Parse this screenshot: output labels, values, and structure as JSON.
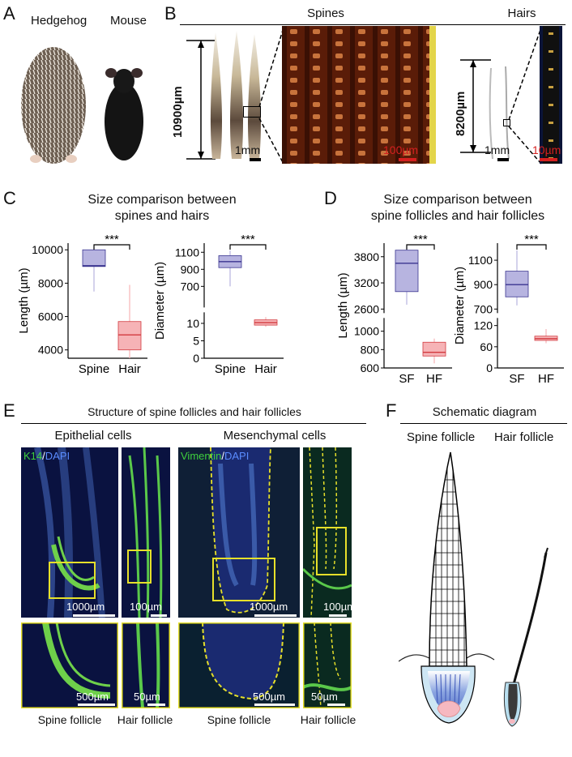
{
  "panels": {
    "A": "A",
    "B": "B",
    "C": "C",
    "D": "D",
    "E": "E",
    "F": "F"
  },
  "panel_a": {
    "hedgehog": "Hedgehog",
    "mouse": "Mouse"
  },
  "panel_b": {
    "spines_title": "Spines",
    "hairs_title": "Hairs",
    "spine_length": "10900µm",
    "spine_scale": "1mm",
    "spine_zoom_scale": "100µm",
    "hair_length": "8200µm",
    "hair_scale": "1mm",
    "hair_zoom_scale": "10µm"
  },
  "panel_c": {
    "title_l1": "Size comparison between",
    "title_l2": "spines and hairs"
  },
  "panel_d": {
    "title_l1": "Size comparison between",
    "title_l2": "spine follicles and hair follicles"
  },
  "panel_e": {
    "title": "Structure of spine follicles and hair follicles",
    "epithelial": "Epithelial cells",
    "mesenchymal": "Mesenchymal cells",
    "k14": "K14",
    "slash1": "/",
    "dapi1": "DAPI",
    "vimentin": "Vimentin",
    "slash2": "/",
    "dapi2": "DAPI",
    "s1": "1000µm",
    "s2": "100µm",
    "s3": "1000µm",
    "s4": "100µm",
    "s5": "500µm",
    "s6": "50µm",
    "s7": "500µm",
    "s8": "50µm",
    "spine_follicle_1": "Spine follicle",
    "hair_follicle_1": "Hair follicle",
    "spine_follicle_2": "Spine follicle",
    "hair_follicle_2": "Hair follicle"
  },
  "panel_f": {
    "title": "Schematic diagram",
    "spine_follicle": "Spine follicle",
    "hair_follicle": "Hair follicle"
  },
  "colors": {
    "spine_box": "#b7b4e0",
    "spine_median": "#3a3590",
    "hair_box": "#f6b3b6",
    "hair_median": "#d23a3f"
  },
  "chart_data": [
    {
      "type": "box",
      "ylabel": "Length (µm)",
      "categories": [
        "Spine",
        "Hair"
      ],
      "y_ticks": [
        "4000",
        "6000",
        "8000",
        "10000"
      ],
      "ylim": [
        3500,
        10400
      ],
      "significance": "***",
      "boxes": [
        {
          "name": "Spine",
          "min": 7500,
          "q1": 9000,
          "median": 9050,
          "q3": 10000,
          "max": 10200
        },
        {
          "name": "Hair",
          "min": 3500,
          "q1": 4000,
          "median": 4900,
          "q3": 5700,
          "max": 7900
        }
      ]
    },
    {
      "type": "box",
      "ylabel": "Diameter (µm)",
      "categories": [
        "Spine",
        "Hair"
      ],
      "y_ticks": [
        "0",
        "5",
        "10",
        "700",
        "900",
        "1100"
      ],
      "axis_break": true,
      "upper_ylim": [
        500,
        1150
      ],
      "lower_ylim": [
        0,
        12
      ],
      "significance": "***",
      "boxes": [
        {
          "name": "Spine",
          "min": 700,
          "q1": 920,
          "median": 990,
          "q3": 1060,
          "max": 1120
        },
        {
          "name": "Hair",
          "min": 9,
          "q1": 9.5,
          "median": 10.2,
          "q3": 11,
          "max": 11.8
        }
      ]
    },
    {
      "type": "box",
      "ylabel": "Length (µm)",
      "categories": [
        "SF",
        "HF"
      ],
      "y_ticks": [
        "600",
        "800",
        "1000",
        "2600",
        "3200",
        "3800"
      ],
      "axis_break": true,
      "upper_ylim": [
        2600,
        4000
      ],
      "lower_ylim": [
        600,
        1100
      ],
      "significance": "***",
      "boxes": [
        {
          "name": "SF",
          "min": 2700,
          "q1": 3000,
          "median": 3650,
          "q3": 3950,
          "max": 4050
        },
        {
          "name": "HF",
          "min": 650,
          "q1": 730,
          "median": 770,
          "q3": 880,
          "max": 920
        }
      ]
    },
    {
      "type": "box",
      "ylabel": "Diameter (µm)",
      "categories": [
        "SF",
        "HF"
      ],
      "y_ticks": [
        "0",
        "60",
        "120",
        "700",
        "900",
        "1100"
      ],
      "axis_break": true,
      "upper_ylim": [
        700,
        1200
      ],
      "lower_ylim": [
        0,
        130
      ],
      "significance": "***",
      "boxes": [
        {
          "name": "SF",
          "min": 730,
          "q1": 800,
          "median": 900,
          "q3": 1010,
          "max": 1180
        },
        {
          "name": "HF",
          "min": 70,
          "q1": 78,
          "median": 83,
          "q3": 90,
          "max": 110
        }
      ]
    }
  ]
}
